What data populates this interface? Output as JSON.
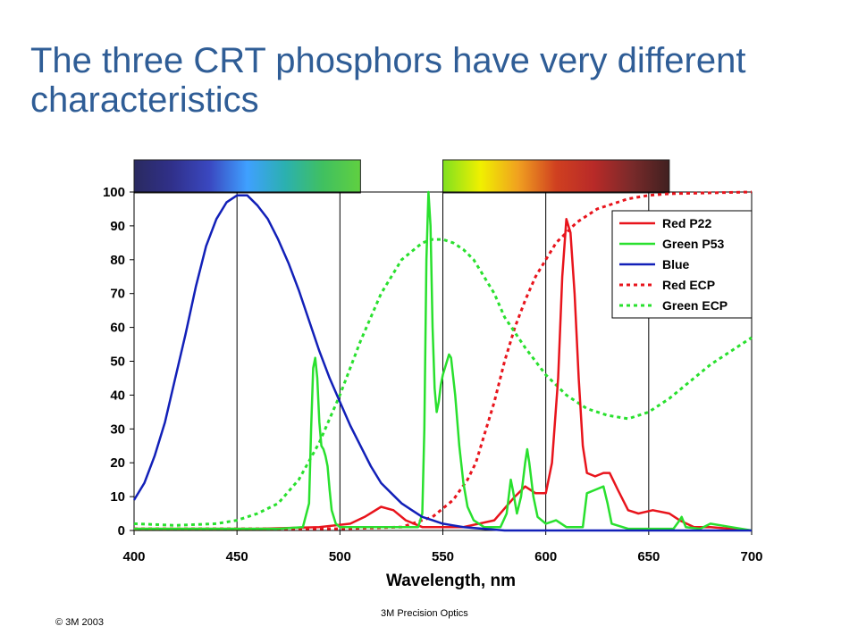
{
  "slide": {
    "title": "The three CRT phosphors have very different characteristics",
    "footer_left": "© 3M 2003",
    "footer_center": "3M Precision Optics"
  },
  "colors": {
    "title": "#2f5d96",
    "red": "#e8141c",
    "green": "#29e02e",
    "blue": "#1220b8",
    "red_ecp": "#e8141c",
    "green_ecp": "#29e02e"
  },
  "chart_data": {
    "type": "line",
    "title": "",
    "xlabel": "Wavelength, nm",
    "ylabel": "",
    "xlim": [
      400,
      700
    ],
    "ylim": [
      0,
      100
    ],
    "x_ticks": [
      400,
      450,
      500,
      550,
      600,
      650,
      700
    ],
    "y_ticks": [
      0,
      10,
      20,
      30,
      40,
      50,
      60,
      70,
      80,
      90,
      100
    ],
    "grid": "vertical lines at 450, 500, 550, 600, 650",
    "legend_position": "top-right",
    "spectrum_bars": [
      {
        "from": 400,
        "to": 510,
        "colors": [
          "#2a2a60",
          "#30308a",
          "#3a48c0",
          "#3fa0ff",
          "#2bb0b0",
          "#40c060",
          "#60d040"
        ]
      },
      {
        "from": 550,
        "to": 660,
        "colors": [
          "#80e020",
          "#f0f000",
          "#f0a020",
          "#d04020",
          "#b82a28",
          "#7a2a2a",
          "#402020"
        ]
      }
    ],
    "series": [
      {
        "name": "Red P22",
        "style": "solid",
        "color": "#e8141c",
        "points": [
          [
            400,
            0.5
          ],
          [
            460,
            0.5
          ],
          [
            490,
            1
          ],
          [
            505,
            2
          ],
          [
            512,
            4
          ],
          [
            520,
            7
          ],
          [
            526,
            6
          ],
          [
            532,
            3
          ],
          [
            540,
            1
          ],
          [
            560,
            1
          ],
          [
            575,
            3
          ],
          [
            585,
            10
          ],
          [
            590,
            13
          ],
          [
            595,
            11
          ],
          [
            600,
            11
          ],
          [
            603,
            20
          ],
          [
            606,
            45
          ],
          [
            608,
            75
          ],
          [
            610,
            92
          ],
          [
            612,
            88
          ],
          [
            614,
            70
          ],
          [
            616,
            45
          ],
          [
            618,
            25
          ],
          [
            620,
            17
          ],
          [
            624,
            16
          ],
          [
            628,
            17
          ],
          [
            631,
            17
          ],
          [
            635,
            12
          ],
          [
            640,
            6
          ],
          [
            645,
            5
          ],
          [
            652,
            6
          ],
          [
            660,
            5
          ],
          [
            665,
            3
          ],
          [
            672,
            1
          ],
          [
            680,
            1
          ],
          [
            700,
            0
          ]
        ]
      },
      {
        "name": "Green P53",
        "style": "solid",
        "color": "#29e02e",
        "points": [
          [
            400,
            0.5
          ],
          [
            470,
            0.5
          ],
          [
            482,
            1
          ],
          [
            485,
            8
          ],
          [
            486,
            30
          ],
          [
            487,
            48
          ],
          [
            488,
            51
          ],
          [
            489,
            45
          ],
          [
            490,
            32
          ],
          [
            491,
            25
          ],
          [
            492,
            24
          ],
          [
            493,
            22
          ],
          [
            494,
            19
          ],
          [
            495,
            12
          ],
          [
            496,
            6
          ],
          [
            498,
            2
          ],
          [
            500,
            1
          ],
          [
            520,
            1
          ],
          [
            538,
            1
          ],
          [
            540,
            5
          ],
          [
            541,
            30
          ],
          [
            542,
            80
          ],
          [
            543,
            100
          ],
          [
            544,
            90
          ],
          [
            545,
            60
          ],
          [
            546,
            42
          ],
          [
            547,
            35
          ],
          [
            548,
            38
          ],
          [
            549,
            43
          ],
          [
            550,
            46
          ],
          [
            552,
            50
          ],
          [
            553,
            52
          ],
          [
            554,
            51
          ],
          [
            556,
            40
          ],
          [
            558,
            25
          ],
          [
            560,
            14
          ],
          [
            562,
            7
          ],
          [
            565,
            3
          ],
          [
            570,
            1
          ],
          [
            578,
            1
          ],
          [
            581,
            5
          ],
          [
            583,
            15
          ],
          [
            584,
            12
          ],
          [
            586,
            5
          ],
          [
            588,
            10
          ],
          [
            590,
            20
          ],
          [
            591,
            24
          ],
          [
            592,
            20
          ],
          [
            594,
            10
          ],
          [
            596,
            4
          ],
          [
            600,
            2
          ],
          [
            605,
            3
          ],
          [
            610,
            1
          ],
          [
            618,
            1
          ],
          [
            620,
            11
          ],
          [
            624,
            12
          ],
          [
            628,
            13
          ],
          [
            630,
            8
          ],
          [
            632,
            2
          ],
          [
            640,
            0.5
          ],
          [
            662,
            0.5
          ],
          [
            665,
            3
          ],
          [
            666,
            4
          ],
          [
            668,
            1
          ],
          [
            675,
            0.5
          ],
          [
            680,
            2
          ],
          [
            690,
            1
          ],
          [
            700,
            0
          ]
        ]
      },
      {
        "name": "Blue",
        "style": "solid",
        "color": "#1220b8",
        "points": [
          [
            400,
            9
          ],
          [
            405,
            14
          ],
          [
            410,
            22
          ],
          [
            415,
            32
          ],
          [
            420,
            45
          ],
          [
            425,
            58
          ],
          [
            430,
            72
          ],
          [
            435,
            84
          ],
          [
            440,
            92
          ],
          [
            445,
            97
          ],
          [
            450,
            99
          ],
          [
            455,
            99
          ],
          [
            460,
            96
          ],
          [
            465,
            92
          ],
          [
            470,
            86
          ],
          [
            475,
            79
          ],
          [
            480,
            71
          ],
          [
            485,
            62
          ],
          [
            490,
            53
          ],
          [
            495,
            45
          ],
          [
            500,
            38
          ],
          [
            505,
            31
          ],
          [
            510,
            25
          ],
          [
            515,
            19
          ],
          [
            520,
            14
          ],
          [
            525,
            11
          ],
          [
            530,
            8
          ],
          [
            535,
            6
          ],
          [
            540,
            4
          ],
          [
            545,
            3
          ],
          [
            550,
            2
          ],
          [
            555,
            1.5
          ],
          [
            560,
            1
          ],
          [
            570,
            0.5
          ],
          [
            580,
            0
          ],
          [
            700,
            0
          ]
        ]
      },
      {
        "name": "Red ECP",
        "style": "dashed",
        "color": "#e8141c",
        "points": [
          [
            400,
            0.5
          ],
          [
            500,
            0.5
          ],
          [
            530,
            1
          ],
          [
            545,
            4
          ],
          [
            555,
            9
          ],
          [
            562,
            15
          ],
          [
            566,
            20
          ],
          [
            570,
            28
          ],
          [
            575,
            38
          ],
          [
            580,
            50
          ],
          [
            585,
            60
          ],
          [
            590,
            68
          ],
          [
            595,
            75
          ],
          [
            600,
            80
          ],
          [
            605,
            85
          ],
          [
            610,
            88
          ],
          [
            615,
            91
          ],
          [
            620,
            93
          ],
          [
            625,
            95
          ],
          [
            630,
            96
          ],
          [
            640,
            98
          ],
          [
            650,
            99
          ],
          [
            660,
            99.5
          ],
          [
            700,
            100
          ]
        ]
      },
      {
        "name": "Green ECP",
        "style": "dashed",
        "color": "#29e02e",
        "points": [
          [
            400,
            2
          ],
          [
            420,
            1.5
          ],
          [
            440,
            2
          ],
          [
            450,
            3
          ],
          [
            460,
            5
          ],
          [
            470,
            8
          ],
          [
            480,
            15
          ],
          [
            490,
            26
          ],
          [
            500,
            40
          ],
          [
            510,
            56
          ],
          [
            520,
            70
          ],
          [
            530,
            80
          ],
          [
            540,
            85
          ],
          [
            545,
            86
          ],
          [
            550,
            86
          ],
          [
            555,
            85
          ],
          [
            560,
            83
          ],
          [
            565,
            80
          ],
          [
            570,
            75
          ],
          [
            575,
            70
          ],
          [
            580,
            63
          ],
          [
            590,
            54
          ],
          [
            600,
            46
          ],
          [
            610,
            40
          ],
          [
            620,
            36
          ],
          [
            630,
            34
          ],
          [
            640,
            33
          ],
          [
            650,
            35
          ],
          [
            660,
            39
          ],
          [
            670,
            44
          ],
          [
            680,
            49
          ],
          [
            690,
            53
          ],
          [
            700,
            57
          ]
        ]
      }
    ]
  }
}
